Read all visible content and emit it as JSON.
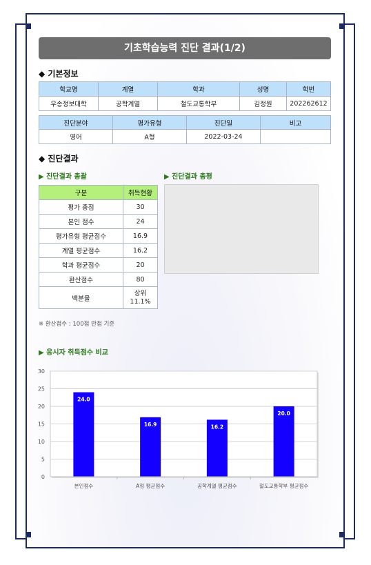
{
  "title": "기초학습능력 진단 결과(1/2)",
  "section_basic": "◆ 기본정보",
  "basic_table": {
    "headers": [
      "학교명",
      "계열",
      "학과",
      "성명",
      "학번"
    ],
    "values": [
      "우송정보대학",
      "공학계열",
      "철도교통학부",
      "김정원",
      "202262612"
    ]
  },
  "diag_table": {
    "headers": [
      "진단분야",
      "평가유형",
      "진단일",
      "비고"
    ],
    "values": [
      "영어",
      "A형",
      "2022-03-24",
      ""
    ]
  },
  "section_result": "◆ 진단결과",
  "summary_heading": "▶ 진단결과 총괄",
  "review_heading": "▶ 진단결과 총평",
  "summary_table": {
    "headers": [
      "구분",
      "취득현황"
    ],
    "rows": [
      {
        "label": "평가 총점",
        "value": "30"
      },
      {
        "label": "본인 점수",
        "value": "24"
      },
      {
        "label": "평가유형 평균점수",
        "value": "16.9"
      },
      {
        "label": "계열 평균점수",
        "value": "16.2"
      },
      {
        "label": "학과 평균점수",
        "value": "20"
      },
      {
        "label": "환산점수",
        "value": "80"
      },
      {
        "label": "백분율",
        "value": "상위",
        "value2": "11.1%"
      }
    ]
  },
  "note": "※    환산점수 : 100점 만점 기준",
  "chart_heading": "▶ 응시자 취득점수 비교",
  "chart_data": {
    "type": "bar",
    "title": "",
    "xlabel": "",
    "ylabel": "",
    "categories": [
      "본인점수",
      "A형 평균점수",
      "공학계열 평균점수",
      "철도교통학부 평균점수"
    ],
    "values": [
      24.0,
      16.9,
      16.2,
      20.0
    ],
    "value_labels": [
      "24.0",
      "16.9",
      "16.2",
      "20.0"
    ],
    "ylim": [
      0,
      30
    ],
    "yticks": [
      0,
      5,
      10,
      15,
      20,
      25,
      30
    ],
    "grid": true,
    "bar_color": "#1400ff"
  }
}
